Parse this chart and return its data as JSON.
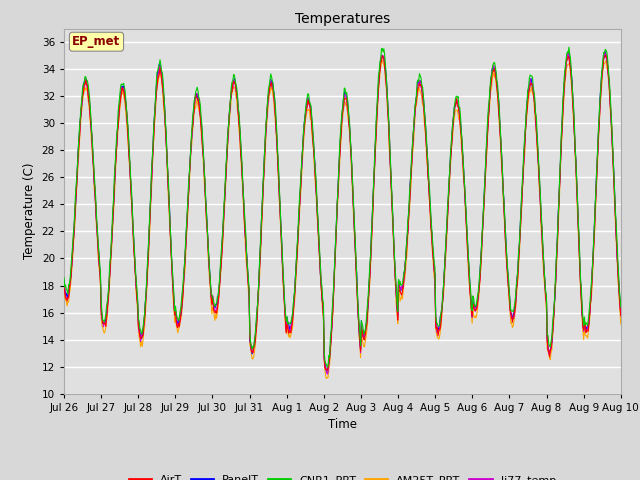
{
  "title": "Temperatures",
  "ylabel": "Temperature (C)",
  "xlabel": "Time",
  "ylim": [
    10,
    37
  ],
  "yticks": [
    10,
    12,
    14,
    16,
    18,
    20,
    22,
    24,
    26,
    28,
    30,
    32,
    34,
    36
  ],
  "bg_color": "#d8d8d8",
  "plot_bg": "#e0e0e0",
  "grid_color": "white",
  "annotation_text": "EP_met",
  "annotation_bg": "#ffffaa",
  "annotation_fg": "#8b0000",
  "series_colors": {
    "AirT": "#ff0000",
    "PanelT": "#0000ff",
    "CNR1_PRT": "#00cc00",
    "AM25T_PRT": "#ffa500",
    "li77_temp": "#cc00cc"
  },
  "xtick_labels": [
    "Jul 26",
    "Jul 27",
    "Jul 28",
    "Jul 29",
    "Jul 30",
    "Jul 31",
    "Aug 1",
    "Aug 2",
    "Aug 3",
    "Aug 4",
    "Aug 5",
    "Aug 6",
    "Aug 7",
    "Aug 8",
    "Aug 9",
    "Aug 10"
  ],
  "n_days": 15,
  "pts_per_day": 48
}
